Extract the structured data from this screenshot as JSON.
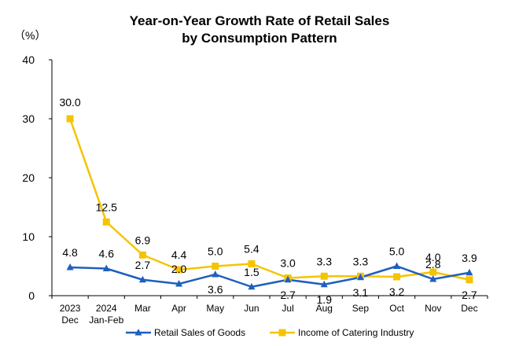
{
  "chart_data": {
    "type": "line",
    "title": "Year-on-Year Growth Rate of Retail Sales",
    "subtitle": "by Consumption Pattern",
    "ylabel": "（%）",
    "xlabel": "",
    "ylim": [
      0,
      40
    ],
    "yticks": [
      0,
      10,
      20,
      30,
      40
    ],
    "grid": false,
    "legend_position": "bottom",
    "categories": [
      [
        "2023",
        "Dec"
      ],
      [
        "2024",
        "Jan-Feb"
      ],
      [
        "Mar"
      ],
      [
        "Apr"
      ],
      [
        "May"
      ],
      [
        "Jun"
      ],
      [
        "Jul"
      ],
      [
        "Aug"
      ],
      [
        "Sep"
      ],
      [
        "Oct"
      ],
      [
        "Nov"
      ],
      [
        "Dec"
      ]
    ],
    "series": [
      {
        "name": "Retail Sales of Goods",
        "color": "#1f5fbf",
        "marker": "triangle",
        "values": [
          4.8,
          4.6,
          2.7,
          2.0,
          3.6,
          1.5,
          2.7,
          1.9,
          3.1,
          5.0,
          2.8,
          3.9
        ],
        "labels": [
          "4.8",
          "4.6",
          "2.7",
          "2.0",
          "3.6",
          "1.5",
          "2.7",
          "1.9",
          "3.1",
          "5.0",
          "2.8",
          "3.9"
        ],
        "label_side": [
          "above",
          "above",
          "above",
          "above",
          "below",
          "above",
          "below",
          "below",
          "below",
          "above",
          "above",
          "above"
        ]
      },
      {
        "name": "Income of Catering Industry",
        "color": "#f5c400",
        "marker": "square",
        "values": [
          30.0,
          12.5,
          6.9,
          4.4,
          5.0,
          5.4,
          3.0,
          3.3,
          3.3,
          3.2,
          4.0,
          2.7
        ],
        "labels": [
          "30.0",
          "12.5",
          "6.9",
          "4.4",
          "5.0",
          "5.4",
          "3.0",
          "3.3",
          "3.3",
          "3.2",
          "4.0",
          "2.7"
        ],
        "label_side": [
          "above",
          "above",
          "above",
          "above",
          "above",
          "above",
          "above",
          "above",
          "above",
          "below",
          "above",
          "below"
        ]
      }
    ]
  }
}
